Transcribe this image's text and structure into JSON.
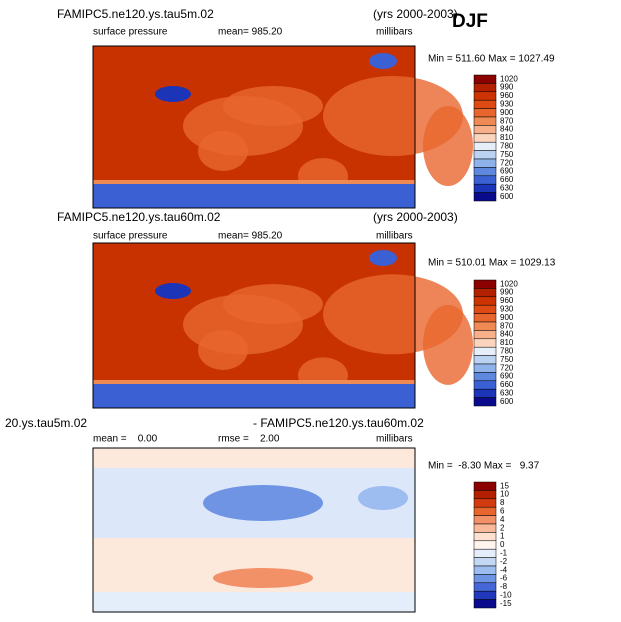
{
  "season": "DJF",
  "panels": [
    {
      "title": "FAMIPC5.ne120.ys.tau5m.02",
      "years": "(yrs 2000-2003)",
      "variable": "surface pressure",
      "stat": "mean= 985.20",
      "units": "millibars",
      "minmax": "Min = 511.60 Max = 1027.49",
      "levels": [
        "1020",
        "990",
        "960",
        "930",
        "900",
        "870",
        "840",
        "810",
        "780",
        "750",
        "720",
        "690",
        "660",
        "630",
        "600"
      ]
    },
    {
      "title": "FAMIPC5.ne120.ys.tau60m.02",
      "years": "(yrs 2000-2003)",
      "variable": "surface pressure",
      "stat": "mean= 985.20",
      "units": "millibars",
      "minmax": "Min = 510.01 Max = 1029.13",
      "levels": [
        "1020",
        "990",
        "960",
        "930",
        "900",
        "870",
        "840",
        "810",
        "780",
        "750",
        "720",
        "690",
        "660",
        "630",
        "600"
      ]
    },
    {
      "title": "20.ys.tau5m.02",
      "years": "- FAMIPC5.ne120.ys.tau60m.02",
      "variable": "mean =    0.00",
      "stat": "rmse =    2.00",
      "units": "millibars",
      "minmax": "Min =  -8.30 Max =   9.37",
      "levels": [
        "15",
        "10",
        "8",
        "6",
        "4",
        "2",
        "1",
        "0",
        "-1",
        "-2",
        "-4",
        "-6",
        "-8",
        "-10",
        "-15"
      ]
    }
  ]
}
